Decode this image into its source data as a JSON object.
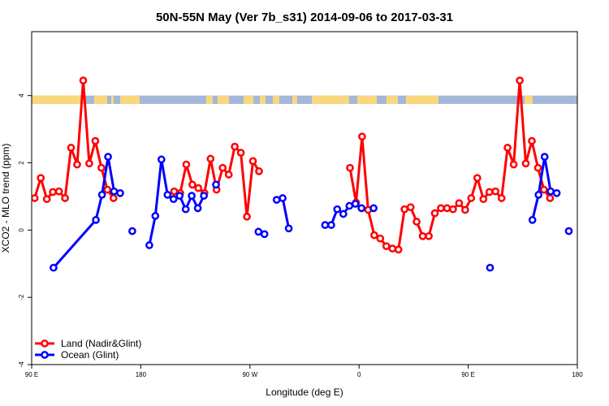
{
  "chart_data": {
    "type": "line",
    "title": "50N-55N May (Ver 7b_s31)   2014-09-06 to 2017-03-31",
    "xlabel": "Longitude (deg E)",
    "ylabel": "XCO2 - MLO trend (ppm)",
    "xlim": [
      90,
      540
    ],
    "ylim": [
      -4,
      5.9
    ],
    "x_ticks": [
      {
        "value": 90,
        "label": "90 E"
      },
      {
        "value": 180,
        "label": "180"
      },
      {
        "value": 270,
        "label": "90 W"
      },
      {
        "value": 360,
        "label": "0"
      },
      {
        "value": 450,
        "label": "90 E"
      },
      {
        "value": 540,
        "label": "180"
      }
    ],
    "y_ticks": [
      {
        "value": -4,
        "label": "-4"
      },
      {
        "value": -2,
        "label": "-2"
      },
      {
        "value": 0,
        "label": "0"
      },
      {
        "value": 2,
        "label": "2"
      },
      {
        "value": 4,
        "label": "4"
      }
    ],
    "grid": false,
    "legend_position": "bottom-left",
    "land_ocean_band": {
      "y_min": 3.75,
      "y_max": 4.0
    },
    "series": [
      {
        "name": "Land (Nadir&Glint)",
        "color": "#ff0000",
        "segments": [
          [
            [
              92.5,
              0.95
            ],
            [
              97.5,
              1.55
            ],
            [
              102.5,
              0.92
            ],
            [
              107.5,
              1.13
            ],
            [
              112.5,
              1.15
            ],
            [
              117.5,
              0.95
            ],
            [
              122.5,
              2.45
            ],
            [
              127.5,
              1.95
            ],
            [
              132.5,
              4.45
            ],
            [
              137.5,
              1.98
            ],
            [
              142.5,
              2.65
            ],
            [
              147.5,
              1.85
            ],
            [
              152.5,
              1.2
            ],
            [
              157.5,
              0.95
            ]
          ],
          [
            [
              207.5,
              1.15
            ],
            [
              212.5,
              1.1
            ],
            [
              217.5,
              1.95
            ],
            [
              222.5,
              1.35
            ],
            [
              227.5,
              1.25
            ],
            [
              232.5,
              1.1
            ],
            [
              237.5,
              2.12
            ],
            [
              242.5,
              1.2
            ],
            [
              247.5,
              1.85
            ],
            [
              252.5,
              1.65
            ],
            [
              257.5,
              2.48
            ],
            [
              262.5,
              2.3
            ],
            [
              267.5,
              0.4
            ],
            [
              272.5,
              2.05
            ],
            [
              277.5,
              1.75
            ]
          ],
          [
            [
              352.5,
              1.85
            ],
            [
              357.5,
              0.82
            ],
            [
              362.5,
              2.78
            ],
            [
              367.5,
              0.6
            ],
            [
              372.5,
              -0.15
            ],
            [
              377.5,
              -0.25
            ],
            [
              382.5,
              -0.48
            ],
            [
              387.5,
              -0.55
            ],
            [
              392.5,
              -0.58
            ],
            [
              397.5,
              0.62
            ],
            [
              402.5,
              0.68
            ],
            [
              407.5,
              0.25
            ],
            [
              412.5,
              -0.18
            ],
            [
              417.5,
              -0.18
            ],
            [
              422.5,
              0.5
            ],
            [
              427.5,
              0.65
            ],
            [
              432.5,
              0.65
            ],
            [
              437.5,
              0.62
            ],
            [
              442.5,
              0.8
            ],
            [
              447.5,
              0.6
            ],
            [
              452.5,
              0.95
            ],
            [
              457.5,
              1.55
            ],
            [
              462.5,
              0.92
            ],
            [
              467.5,
              1.13
            ],
            [
              472.5,
              1.15
            ],
            [
              477.5,
              0.95
            ],
            [
              482.5,
              2.45
            ],
            [
              487.5,
              1.95
            ],
            [
              492.5,
              4.45
            ],
            [
              497.5,
              1.98
            ],
            [
              502.5,
              2.65
            ],
            [
              507.5,
              1.85
            ],
            [
              512.5,
              1.2
            ],
            [
              517.5,
              0.95
            ]
          ]
        ]
      },
      {
        "name": "Ocean (Glint)",
        "color": "#0000ff",
        "segments": [
          [
            [
              108,
              -1.12
            ],
            [
              143,
              0.3
            ],
            [
              148,
              1.05
            ],
            [
              153,
              2.18
            ],
            [
              158,
              1.15
            ],
            [
              163,
              1.1
            ]
          ],
          [
            [
              173,
              -0.03
            ]
          ],
          [
            [
              187,
              -0.45
            ],
            [
              192,
              0.42
            ],
            [
              197,
              2.1
            ],
            [
              202,
              1.05
            ],
            [
              207,
              0.92
            ],
            [
              212,
              1.02
            ],
            [
              217,
              0.62
            ],
            [
              222,
              1.02
            ],
            [
              227,
              0.65
            ],
            [
              232,
              1.02
            ]
          ],
          [
            [
              242,
              1.35
            ]
          ],
          [
            [
              277,
              -0.05
            ],
            [
              282,
              -0.12
            ]
          ],
          [
            [
              292,
              0.9
            ],
            [
              297,
              0.95
            ],
            [
              302,
              0.05
            ]
          ],
          [
            [
              332,
              0.15
            ],
            [
              337,
              0.15
            ],
            [
              342,
              0.62
            ],
            [
              347,
              0.48
            ],
            [
              352,
              0.72
            ],
            [
              357,
              0.78
            ],
            [
              362,
              0.65
            ]
          ],
          [
            [
              372,
              0.65
            ]
          ],
          [
            [
              468,
              -1.12
            ]
          ],
          [
            [
              503,
              0.3
            ],
            [
              508,
              1.05
            ],
            [
              513,
              2.18
            ],
            [
              518,
              1.15
            ],
            [
              523,
              1.1
            ]
          ],
          [
            [
              533,
              -0.03
            ]
          ]
        ]
      }
    ]
  }
}
